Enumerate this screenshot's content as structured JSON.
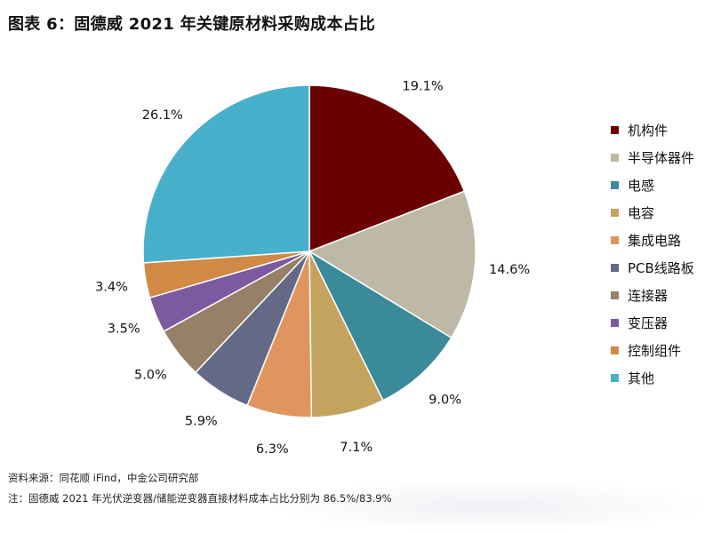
{
  "title": "图表 6：固德威 2021 年关键原材料采购成本占比",
  "footer": {
    "source": "资料来源：同花顺 iFind，中金公司研究部",
    "note": "注：固德威 2021 年光伏逆变器/储能逆变器直接材料成本占比分别为 86.5%/83.9%"
  },
  "chart_data": {
    "type": "pie",
    "unit": "%",
    "legend_position": "right",
    "start": "12 o'clock",
    "direction": "clockwise",
    "slices": [
      {
        "name": "机构件",
        "value": 19.1,
        "label": "19.1%",
        "color": "#6b0000"
      },
      {
        "name": "半导体器件",
        "value": 14.6,
        "label": "14.6%",
        "color": "#bdb9a6"
      },
      {
        "name": "电感",
        "value": 9.0,
        "label": "9.0%",
        "color": "#3a8a9a"
      },
      {
        "name": "电容",
        "value": 7.1,
        "label": "7.1%",
        "color": "#c4a35e"
      },
      {
        "name": "集成电路",
        "value": 6.3,
        "label": "6.3%",
        "color": "#e0955f"
      },
      {
        "name": "PCB线路板",
        "value": 5.9,
        "label": "5.9%",
        "color": "#646a86"
      },
      {
        "name": "连接器",
        "value": 5.0,
        "label": "5.0%",
        "color": "#968068"
      },
      {
        "name": "变压器",
        "value": 3.5,
        "label": "3.5%",
        "color": "#7b5aa0"
      },
      {
        "name": "控制组件",
        "value": 3.4,
        "label": "3.4%",
        "color": "#d08a45"
      },
      {
        "name": "其他",
        "value": 26.1,
        "label": "26.1%",
        "color": "#48b0cb"
      }
    ]
  }
}
